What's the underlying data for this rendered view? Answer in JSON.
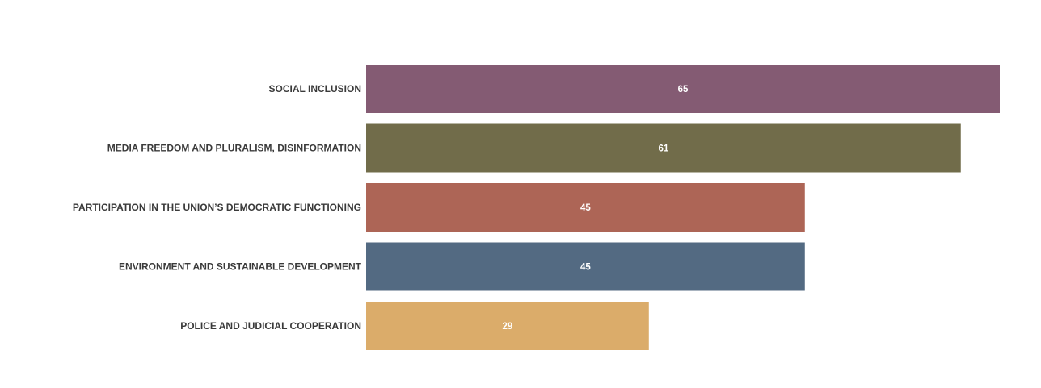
{
  "chart_data": {
    "type": "bar",
    "orientation": "horizontal",
    "categories": [
      "SOCIAL INCLUSION",
      "MEDIA FREEDOM AND PLURALISM, DISINFORMATION",
      "PARTICIPATION IN THE UNION’S DEMOCRATIC FUNCTIONING",
      "ENVIRONMENT AND SUSTAINABLE DEVELOPMENT",
      "POLICE AND JUDICIAL COOPERATION"
    ],
    "values": [
      65,
      61,
      45,
      45,
      29
    ],
    "data_labels": [
      "65",
      "61",
      "45",
      "45",
      "29"
    ],
    "colors": [
      "#845b73",
      "#716c4a",
      "#ad6556",
      "#536a82",
      "#dbac6a"
    ],
    "title": "",
    "xlabel": "",
    "ylabel": "",
    "xlim": [
      0,
      65
    ],
    "grid": false,
    "legend": "none"
  }
}
